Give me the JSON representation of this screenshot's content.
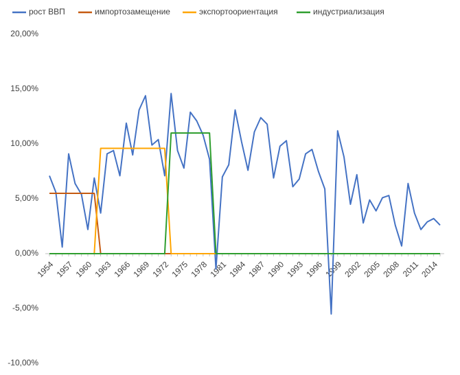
{
  "chart_data": {
    "type": "line",
    "x": [
      1954,
      1955,
      1956,
      1957,
      1958,
      1959,
      1960,
      1961,
      1962,
      1963,
      1964,
      1965,
      1966,
      1967,
      1968,
      1969,
      1970,
      1971,
      1972,
      1973,
      1974,
      1975,
      1976,
      1977,
      1978,
      1979,
      1980,
      1981,
      1982,
      1983,
      1984,
      1985,
      1986,
      1987,
      1988,
      1989,
      1990,
      1991,
      1992,
      1993,
      1994,
      1995,
      1996,
      1997,
      1998,
      1999,
      2000,
      2001,
      2002,
      2003,
      2004,
      2005,
      2006,
      2007,
      2008,
      2009,
      2010,
      2011,
      2012,
      2013,
      2014,
      2015
    ],
    "xlim": [
      1954,
      2015
    ],
    "xticks": [
      1954,
      1957,
      1960,
      1963,
      1966,
      1969,
      1972,
      1975,
      1978,
      1981,
      1984,
      1987,
      1990,
      1993,
      1996,
      1999,
      2002,
      2005,
      2008,
      2011,
      2014
    ],
    "ylim": [
      -10,
      20
    ],
    "yticks": [
      {
        "value": -10,
        "label": "-10,00%"
      },
      {
        "value": -5,
        "label": "-5,00%"
      },
      {
        "value": 0,
        "label": "0,00%"
      },
      {
        "value": 5,
        "label": "5,00%"
      },
      {
        "value": 10,
        "label": "10,00%"
      },
      {
        "value": 15,
        "label": "15,00%"
      },
      {
        "value": 20,
        "label": "20,00%"
      }
    ],
    "grid": false,
    "legend": "top",
    "series": [
      {
        "name": "рост ВВП",
        "color": "#4472c4",
        "values": [
          7.1,
          5.6,
          0.6,
          9.1,
          6.4,
          5.4,
          2.2,
          6.9,
          3.7,
          9.1,
          9.4,
          7.1,
          11.9,
          9.0,
          13.1,
          14.4,
          9.9,
          10.4,
          7.1,
          14.6,
          9.4,
          7.8,
          12.9,
          12.1,
          10.8,
          8.6,
          -1.4,
          7.0,
          8.1,
          13.1,
          10.2,
          7.6,
          11.1,
          12.4,
          11.8,
          6.9,
          9.8,
          10.3,
          6.1,
          6.8,
          9.1,
          9.5,
          7.5,
          5.9,
          -5.5,
          11.2,
          8.8,
          4.5,
          7.2,
          2.8,
          4.9,
          3.9,
          5.1,
          5.3,
          2.6,
          0.7,
          6.4,
          3.7,
          2.2,
          2.9,
          3.2,
          2.6
        ]
      },
      {
        "name": "импортозамещение",
        "color": "#c55a11",
        "values": [
          5.5,
          5.5,
          5.5,
          5.5,
          5.5,
          5.5,
          5.5,
          5.5,
          0,
          0,
          0,
          0,
          0,
          0,
          0,
          0,
          0,
          0,
          0,
          0,
          0,
          0,
          0,
          0,
          0,
          0,
          0,
          0,
          0,
          0,
          0,
          0,
          0,
          0,
          0,
          0,
          0,
          0,
          0,
          0,
          0,
          0,
          0,
          0,
          0,
          0,
          0,
          0,
          0,
          0,
          0,
          0,
          0,
          0,
          0,
          0,
          0,
          0,
          0,
          0,
          0,
          0
        ]
      },
      {
        "name": "экспортоориентация",
        "color": "#ffa500",
        "values": [
          0,
          0,
          0,
          0,
          0,
          0,
          0,
          0,
          9.6,
          9.6,
          9.6,
          9.6,
          9.6,
          9.6,
          9.6,
          9.6,
          9.6,
          9.6,
          9.6,
          0,
          0,
          0,
          0,
          0,
          0,
          0,
          0,
          0,
          0,
          0,
          0,
          0,
          0,
          0,
          0,
          0,
          0,
          0,
          0,
          0,
          0,
          0,
          0,
          0,
          0,
          0,
          0,
          0,
          0,
          0,
          0,
          0,
          0,
          0,
          0,
          0,
          0,
          0,
          0,
          0,
          0,
          0
        ]
      },
      {
        "name": "индустриализация",
        "color": "#2e9e2e",
        "values": [
          0,
          0,
          0,
          0,
          0,
          0,
          0,
          0,
          0,
          0,
          0,
          0,
          0,
          0,
          0,
          0,
          0,
          0,
          0,
          11,
          11,
          11,
          11,
          11,
          11,
          11,
          0,
          0,
          0,
          0,
          0,
          0,
          0,
          0,
          0,
          0,
          0,
          0,
          0,
          0,
          0,
          0,
          0,
          0,
          0,
          0,
          0,
          0,
          0,
          0,
          0,
          0,
          0,
          0,
          0,
          0,
          0,
          0,
          0,
          0,
          0,
          0
        ]
      }
    ]
  }
}
